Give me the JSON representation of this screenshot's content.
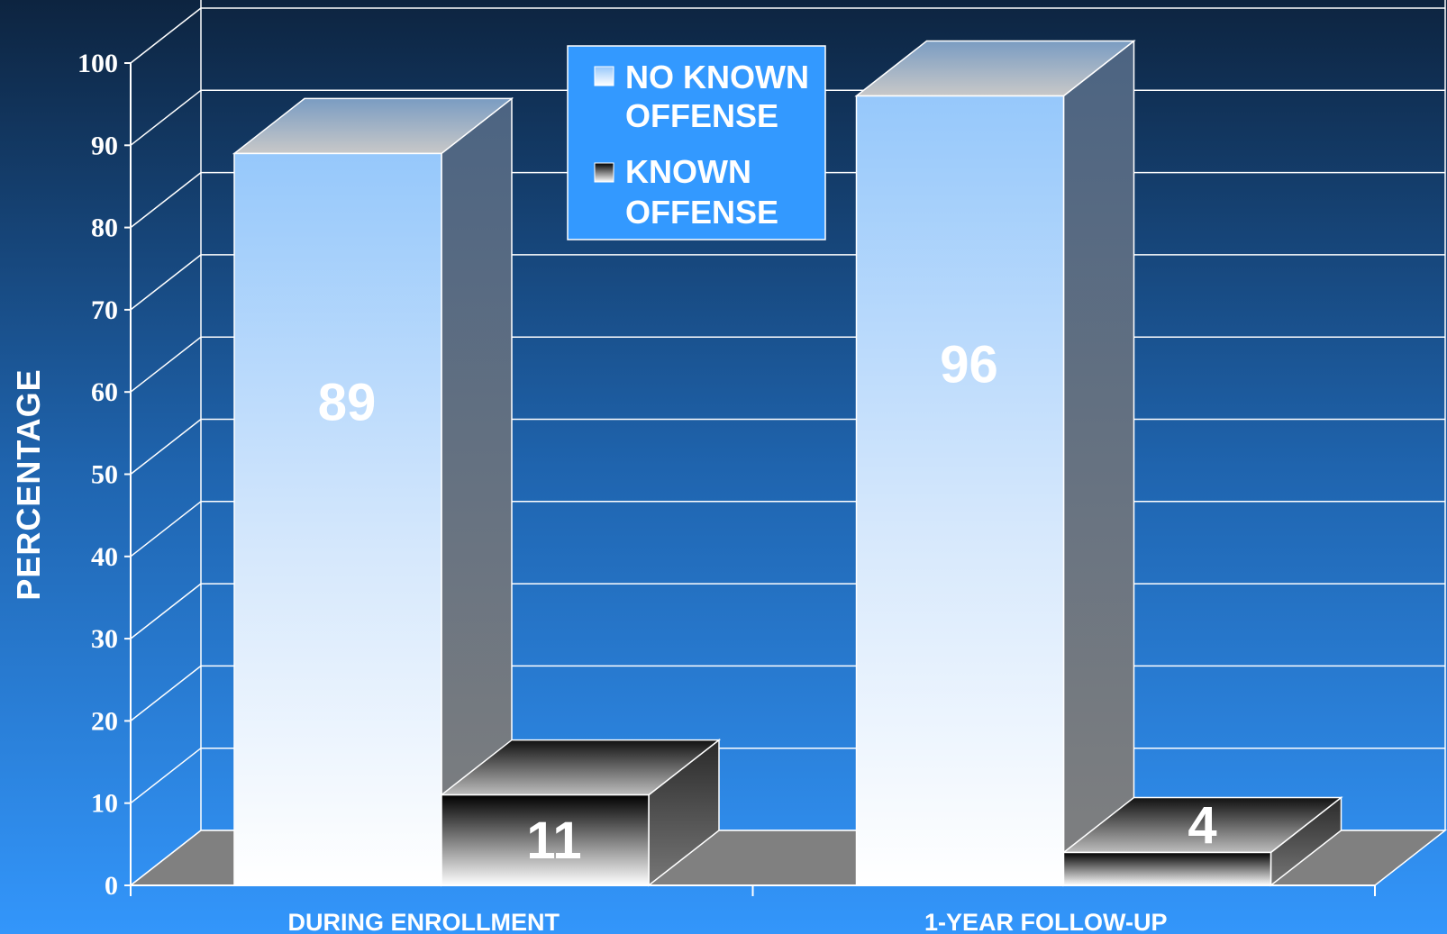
{
  "chart_data": {
    "type": "bar",
    "style": "3d-clustered",
    "categories": [
      "DURING ENROLLMENT",
      "1-YEAR FOLLOW-UP"
    ],
    "series": [
      {
        "name": "NO KNOWN OFFENSE",
        "values": [
          89,
          96
        ],
        "color": "#9dcbfb"
      },
      {
        "name": "KNOWN OFFENSE",
        "values": [
          11,
          4
        ],
        "color": "#1a1a1a"
      }
    ],
    "ylabel": "PERCENTAGE",
    "ylim": [
      0,
      100
    ],
    "yticks": [
      0,
      10,
      20,
      30,
      40,
      50,
      60,
      70,
      80,
      90,
      100
    ],
    "grid": true,
    "legend": {
      "position": "top-center",
      "entries": [
        {
          "line1": "NO KNOWN",
          "line2": "OFFENSE"
        },
        {
          "line1": "KNOWN",
          "line2": "OFFENSE"
        }
      ]
    },
    "colors": {
      "background_top": "#0d2440",
      "background_bottom": "#3396fb",
      "legend_fill": "#3399ff",
      "floor": "#808080"
    }
  }
}
